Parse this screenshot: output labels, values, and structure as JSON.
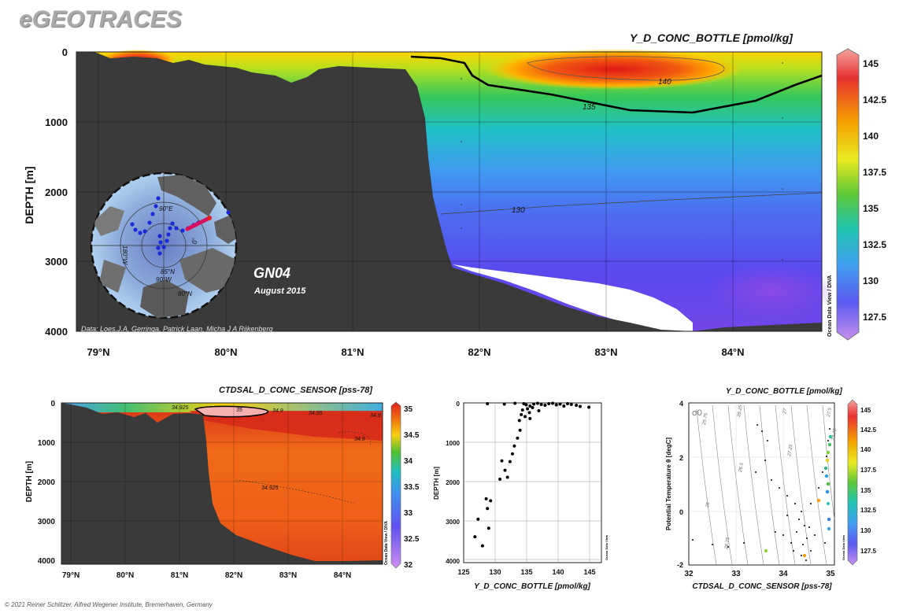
{
  "brand": "eGEOTRACES",
  "copyright": "© 2021 Reiner Schlitzer, Alfred Wegener Institute, Bremerhaven, Germany",
  "colors": {
    "land": "#3a3a3a",
    "nodata": "#ffffff"
  },
  "chart_data": [
    {
      "type": "heatmap",
      "name": "main-section",
      "title": "Y_D_CONC_BOTTLE [pmol/kg]",
      "xlabel": "",
      "ylabel": "DEPTH [m]",
      "section_label": "GN04",
      "section_date": "August 2015",
      "credits": "Data: Loes.J.A. Gerringa, Patrick Laan, Micha J A Rijkenberg",
      "x_ticks": [
        "79°N",
        "80°N",
        "81°N",
        "82°N",
        "83°N",
        "84°N"
      ],
      "y_ticks": [
        "0",
        "1000",
        "2000",
        "3000",
        "4000"
      ],
      "ylim": [
        0,
        4000
      ],
      "colorbar": {
        "ticks": [
          "145",
          "142.5",
          "140",
          "137.5",
          "135",
          "132.5",
          "130",
          "127.5"
        ],
        "range": [
          126,
          146
        ],
        "label": "Ocean Data View / DIVA"
      },
      "contours": [
        "140",
        "135",
        "130"
      ],
      "map_labels": [
        "90°E",
        "180°W",
        "0°",
        "85°N",
        "90°W",
        "80°N"
      ]
    },
    {
      "type": "heatmap",
      "name": "salinity-section",
      "title": "CTDSAL_D_CONC_SENSOR [pss-78]",
      "xlabel": "",
      "ylabel": "DEPTH [m]",
      "x_ticks": [
        "79°N",
        "80°N",
        "81°N",
        "82°N",
        "83°N",
        "84°N"
      ],
      "y_ticks": [
        "0",
        "1000",
        "2000",
        "3000",
        "4000"
      ],
      "ylim": [
        0,
        4000
      ],
      "colorbar": {
        "ticks": [
          "35",
          "34.5",
          "34",
          "33.5",
          "33",
          "32.5",
          "32"
        ],
        "range": [
          32,
          35
        ],
        "label": "Ocean Data View / DIVA"
      },
      "contours": [
        "34.925",
        "35",
        "34.9",
        "34.95",
        "34.9",
        "34.9",
        "34.925"
      ]
    },
    {
      "type": "scatter",
      "name": "depth-profile",
      "title": "",
      "xlabel": "Y_D_CONC_BOTTLE [pmol/kg]",
      "ylabel": "DEPTH [m]",
      "x_ticks": [
        "125",
        "130",
        "135",
        "140",
        "145"
      ],
      "y_ticks": [
        "0",
        "1000",
        "2000",
        "3000",
        "4000"
      ],
      "xlim": [
        125,
        147
      ],
      "ylim": [
        0,
        4000
      ],
      "grid": true,
      "side_label": "Ocean Data View",
      "points": [
        [
          128.8,
          20
        ],
        [
          131.5,
          30
        ],
        [
          133.2,
          10
        ],
        [
          134.6,
          20
        ],
        [
          135.0,
          50
        ],
        [
          135.6,
          80
        ],
        [
          136.2,
          30
        ],
        [
          136.8,
          10
        ],
        [
          137.4,
          40
        ],
        [
          138.0,
          60
        ],
        [
          138.6,
          20
        ],
        [
          139.2,
          10
        ],
        [
          139.8,
          50
        ],
        [
          140.4,
          30
        ],
        [
          141.0,
          80
        ],
        [
          141.6,
          20
        ],
        [
          142.2,
          40
        ],
        [
          143.0,
          60
        ],
        [
          143.6,
          90
        ],
        [
          145.0,
          110
        ],
        [
          136.0,
          120
        ],
        [
          135.2,
          150
        ],
        [
          134.4,
          180
        ],
        [
          137.0,
          200
        ],
        [
          135.5,
          250
        ],
        [
          134.2,
          300
        ],
        [
          134.8,
          350
        ],
        [
          135.6,
          400
        ],
        [
          133.9,
          450
        ],
        [
          134.0,
          700
        ],
        [
          133.6,
          900
        ],
        [
          133.1,
          1100
        ],
        [
          132.8,
          1300
        ],
        [
          132.4,
          1500
        ],
        [
          131.1,
          1480
        ],
        [
          131.6,
          1720
        ],
        [
          132.0,
          1900
        ],
        [
          130.8,
          1950
        ],
        [
          129.3,
          2500
        ],
        [
          128.6,
          2450
        ],
        [
          128.8,
          2700
        ],
        [
          129.0,
          3200
        ],
        [
          127.3,
          2970
        ],
        [
          126.8,
          3420
        ],
        [
          128.0,
          3650
        ]
      ]
    },
    {
      "type": "scatter",
      "name": "ts-diagram",
      "title": "Y_D_CONC_BOTTLE [pmol/kg]",
      "xlabel": "CTDSAL_D_CONC_SENSOR [pss-78]",
      "ylabel": "Potential Temperature θ [degC]",
      "x_ticks": [
        "32",
        "33",
        "34",
        "35"
      ],
      "y_ticks": [
        "4",
        "2",
        "0",
        "-2"
      ],
      "xlim": [
        32,
        35.1
      ],
      "ylim": [
        -2,
        4
      ],
      "isopycnal_symbol": "σ0",
      "isopycnals": [
        "25.75",
        "26",
        "26.25",
        "26.5",
        "26.75",
        "27",
        "27.25",
        "27.5",
        "27.75"
      ],
      "colorbar": {
        "ticks": [
          "145",
          "142.5",
          "140",
          "137.5",
          "135",
          "132.5",
          "130",
          "127.5"
        ],
        "range": [
          126,
          146
        ],
        "label": "Ocean Data View"
      }
    }
  ]
}
